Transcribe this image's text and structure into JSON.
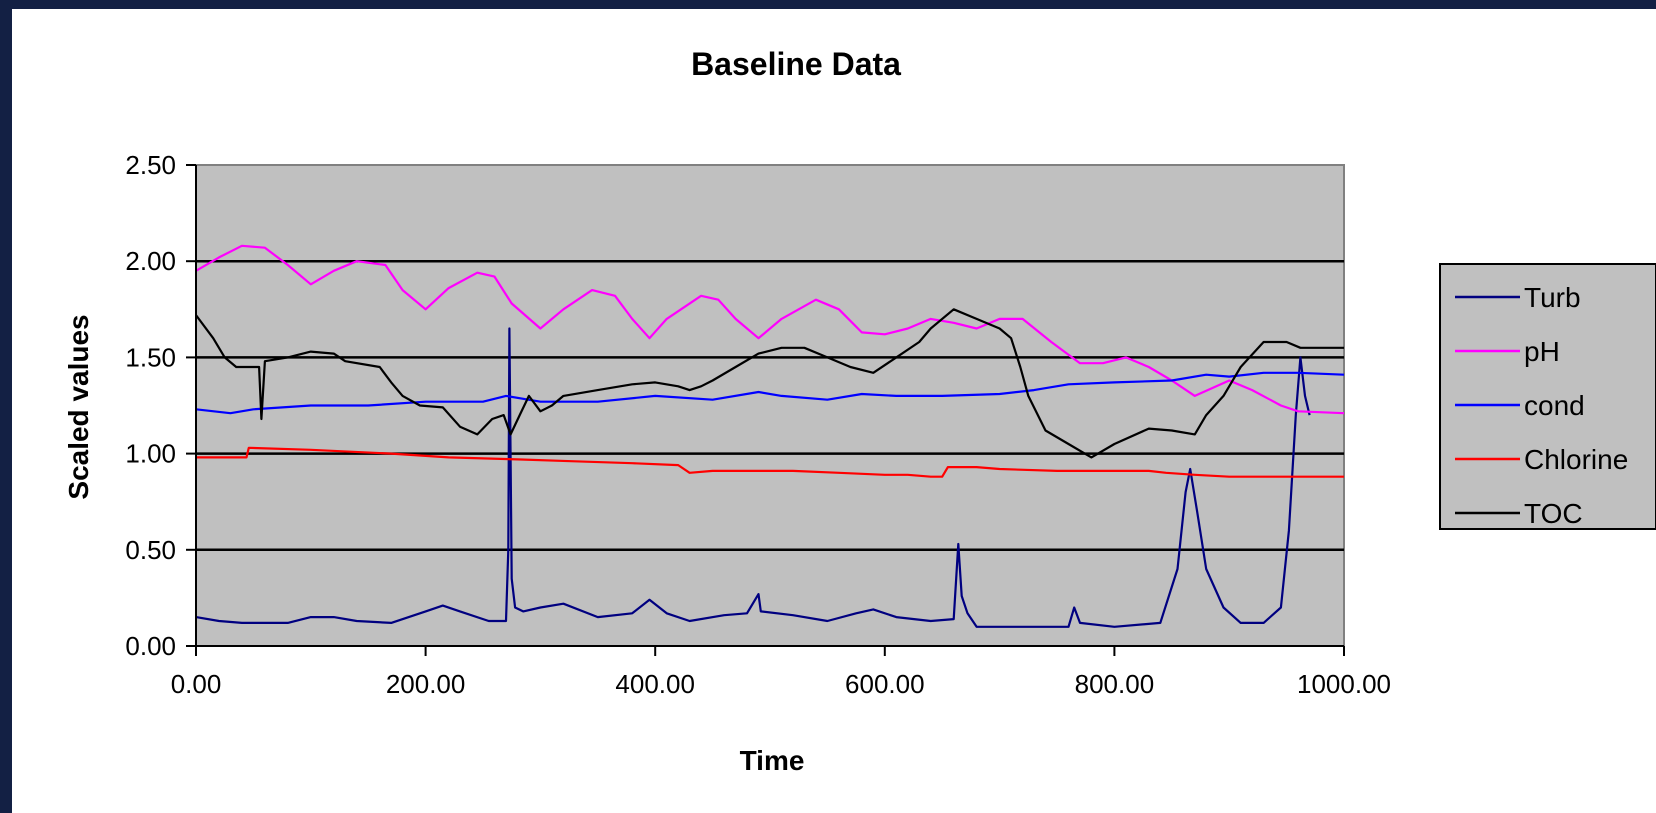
{
  "chart_data": {
    "type": "line",
    "title": "Baseline Data",
    "xlabel": "Time",
    "ylabel": "Scaled values",
    "xlim": [
      0,
      1000
    ],
    "ylim": [
      0,
      2.5
    ],
    "x_ticks": [
      "0.00",
      "200.00",
      "400.00",
      "600.00",
      "800.00",
      "1000.00"
    ],
    "y_ticks": [
      "0.00",
      "0.50",
      "1.00",
      "1.50",
      "2.00",
      "2.50"
    ],
    "x_tick_values": [
      0,
      200,
      400,
      600,
      800,
      1000
    ],
    "y_tick_values": [
      0,
      0.5,
      1.0,
      1.5,
      2.0,
      2.5
    ],
    "grid": "horizontal",
    "plot_background": "#C0C0C0",
    "legend_position": "right",
    "series": [
      {
        "name": "Turb",
        "color": "#000080",
        "points": [
          [
            0,
            0.15
          ],
          [
            20,
            0.13
          ],
          [
            40,
            0.12
          ],
          [
            80,
            0.12
          ],
          [
            100,
            0.15
          ],
          [
            120,
            0.15
          ],
          [
            140,
            0.13
          ],
          [
            170,
            0.12
          ],
          [
            200,
            0.18
          ],
          [
            215,
            0.21
          ],
          [
            230,
            0.18
          ],
          [
            255,
            0.13
          ],
          [
            270,
            0.13
          ],
          [
            272,
            0.5
          ],
          [
            273,
            1.65
          ],
          [
            275,
            0.35
          ],
          [
            278,
            0.2
          ],
          [
            285,
            0.18
          ],
          [
            300,
            0.2
          ],
          [
            320,
            0.22
          ],
          [
            350,
            0.15
          ],
          [
            380,
            0.17
          ],
          [
            395,
            0.24
          ],
          [
            410,
            0.17
          ],
          [
            430,
            0.13
          ],
          [
            460,
            0.16
          ],
          [
            480,
            0.17
          ],
          [
            490,
            0.27
          ],
          [
            492,
            0.18
          ],
          [
            520,
            0.16
          ],
          [
            550,
            0.13
          ],
          [
            575,
            0.17
          ],
          [
            590,
            0.19
          ],
          [
            610,
            0.15
          ],
          [
            640,
            0.13
          ],
          [
            660,
            0.14
          ],
          [
            664,
            0.53
          ],
          [
            667,
            0.26
          ],
          [
            672,
            0.17
          ],
          [
            680,
            0.1
          ],
          [
            710,
            0.1
          ],
          [
            760,
            0.1
          ],
          [
            765,
            0.2
          ],
          [
            770,
            0.12
          ],
          [
            800,
            0.1
          ],
          [
            840,
            0.12
          ],
          [
            855,
            0.4
          ],
          [
            862,
            0.8
          ],
          [
            866,
            0.92
          ],
          [
            872,
            0.7
          ],
          [
            880,
            0.4
          ],
          [
            895,
            0.2
          ],
          [
            910,
            0.12
          ],
          [
            930,
            0.12
          ],
          [
            945,
            0.2
          ],
          [
            952,
            0.6
          ],
          [
            958,
            1.2
          ],
          [
            962,
            1.5
          ],
          [
            966,
            1.3
          ],
          [
            970,
            1.2
          ]
        ]
      },
      {
        "name": "pH",
        "color": "#FF00FF",
        "points": [
          [
            0,
            1.95
          ],
          [
            20,
            2.02
          ],
          [
            40,
            2.08
          ],
          [
            60,
            2.07
          ],
          [
            80,
            1.98
          ],
          [
            100,
            1.88
          ],
          [
            120,
            1.95
          ],
          [
            140,
            2.0
          ],
          [
            165,
            1.98
          ],
          [
            180,
            1.85
          ],
          [
            200,
            1.75
          ],
          [
            220,
            1.86
          ],
          [
            245,
            1.94
          ],
          [
            260,
            1.92
          ],
          [
            275,
            1.78
          ],
          [
            300,
            1.65
          ],
          [
            320,
            1.75
          ],
          [
            345,
            1.85
          ],
          [
            365,
            1.82
          ],
          [
            380,
            1.7
          ],
          [
            395,
            1.6
          ],
          [
            410,
            1.7
          ],
          [
            440,
            1.82
          ],
          [
            455,
            1.8
          ],
          [
            470,
            1.7
          ],
          [
            490,
            1.6
          ],
          [
            510,
            1.7
          ],
          [
            540,
            1.8
          ],
          [
            560,
            1.75
          ],
          [
            580,
            1.63
          ],
          [
            600,
            1.62
          ],
          [
            620,
            1.65
          ],
          [
            640,
            1.7
          ],
          [
            660,
            1.68
          ],
          [
            680,
            1.65
          ],
          [
            700,
            1.7
          ],
          [
            720,
            1.7
          ],
          [
            745,
            1.58
          ],
          [
            770,
            1.47
          ],
          [
            790,
            1.47
          ],
          [
            810,
            1.5
          ],
          [
            830,
            1.45
          ],
          [
            850,
            1.38
          ],
          [
            870,
            1.3
          ],
          [
            900,
            1.38
          ],
          [
            920,
            1.33
          ],
          [
            945,
            1.25
          ],
          [
            960,
            1.22
          ],
          [
            1000,
            1.21
          ]
        ]
      },
      {
        "name": "cond",
        "color": "#0000FF",
        "points": [
          [
            0,
            1.23
          ],
          [
            30,
            1.21
          ],
          [
            50,
            1.23
          ],
          [
            100,
            1.25
          ],
          [
            150,
            1.25
          ],
          [
            200,
            1.27
          ],
          [
            250,
            1.27
          ],
          [
            270,
            1.3
          ],
          [
            300,
            1.27
          ],
          [
            350,
            1.27
          ],
          [
            400,
            1.3
          ],
          [
            450,
            1.28
          ],
          [
            490,
            1.32
          ],
          [
            510,
            1.3
          ],
          [
            550,
            1.28
          ],
          [
            580,
            1.31
          ],
          [
            610,
            1.3
          ],
          [
            650,
            1.3
          ],
          [
            700,
            1.31
          ],
          [
            730,
            1.33
          ],
          [
            760,
            1.36
          ],
          [
            800,
            1.37
          ],
          [
            850,
            1.38
          ],
          [
            880,
            1.41
          ],
          [
            900,
            1.4
          ],
          [
            930,
            1.42
          ],
          [
            960,
            1.42
          ],
          [
            1000,
            1.41
          ]
        ]
      },
      {
        "name": "Chlorine",
        "color": "#FF0000",
        "points": [
          [
            0,
            0.98
          ],
          [
            44,
            0.98
          ],
          [
            46,
            1.03
          ],
          [
            100,
            1.02
          ],
          [
            170,
            1.0
          ],
          [
            220,
            0.98
          ],
          [
            280,
            0.97
          ],
          [
            330,
            0.96
          ],
          [
            380,
            0.95
          ],
          [
            420,
            0.94
          ],
          [
            430,
            0.9
          ],
          [
            450,
            0.91
          ],
          [
            480,
            0.91
          ],
          [
            520,
            0.91
          ],
          [
            560,
            0.9
          ],
          [
            600,
            0.89
          ],
          [
            620,
            0.89
          ],
          [
            640,
            0.88
          ],
          [
            650,
            0.88
          ],
          [
            655,
            0.93
          ],
          [
            680,
            0.93
          ],
          [
            700,
            0.92
          ],
          [
            750,
            0.91
          ],
          [
            800,
            0.91
          ],
          [
            830,
            0.91
          ],
          [
            845,
            0.9
          ],
          [
            870,
            0.89
          ],
          [
            900,
            0.88
          ],
          [
            1000,
            0.88
          ]
        ]
      },
      {
        "name": "TOC",
        "color": "#000000",
        "points": [
          [
            0,
            1.72
          ],
          [
            15,
            1.6
          ],
          [
            25,
            1.5
          ],
          [
            35,
            1.45
          ],
          [
            55,
            1.45
          ],
          [
            57,
            1.18
          ],
          [
            60,
            1.48
          ],
          [
            80,
            1.5
          ],
          [
            100,
            1.53
          ],
          [
            120,
            1.52
          ],
          [
            130,
            1.48
          ],
          [
            160,
            1.45
          ],
          [
            170,
            1.37
          ],
          [
            180,
            1.3
          ],
          [
            195,
            1.25
          ],
          [
            215,
            1.24
          ],
          [
            230,
            1.14
          ],
          [
            245,
            1.1
          ],
          [
            258,
            1.18
          ],
          [
            268,
            1.2
          ],
          [
            274,
            1.1
          ],
          [
            282,
            1.2
          ],
          [
            290,
            1.3
          ],
          [
            300,
            1.22
          ],
          [
            310,
            1.25
          ],
          [
            320,
            1.3
          ],
          [
            350,
            1.33
          ],
          [
            380,
            1.36
          ],
          [
            400,
            1.37
          ],
          [
            420,
            1.35
          ],
          [
            430,
            1.33
          ],
          [
            440,
            1.35
          ],
          [
            450,
            1.38
          ],
          [
            470,
            1.45
          ],
          [
            490,
            1.52
          ],
          [
            510,
            1.55
          ],
          [
            530,
            1.55
          ],
          [
            550,
            1.5
          ],
          [
            570,
            1.45
          ],
          [
            590,
            1.42
          ],
          [
            610,
            1.5
          ],
          [
            630,
            1.58
          ],
          [
            640,
            1.65
          ],
          [
            660,
            1.75
          ],
          [
            680,
            1.7
          ],
          [
            700,
            1.65
          ],
          [
            710,
            1.6
          ],
          [
            718,
            1.45
          ],
          [
            725,
            1.3
          ],
          [
            740,
            1.12
          ],
          [
            760,
            1.05
          ],
          [
            780,
            0.98
          ],
          [
            800,
            1.05
          ],
          [
            830,
            1.13
          ],
          [
            850,
            1.12
          ],
          [
            870,
            1.1
          ],
          [
            880,
            1.2
          ],
          [
            895,
            1.3
          ],
          [
            910,
            1.45
          ],
          [
            930,
            1.58
          ],
          [
            950,
            1.58
          ],
          [
            962,
            1.55
          ],
          [
            970,
            1.55
          ],
          [
            1000,
            1.55
          ]
        ]
      }
    ]
  }
}
